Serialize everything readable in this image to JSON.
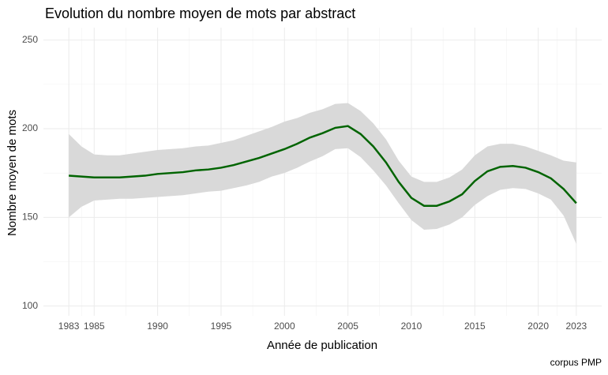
{
  "chart_data": {
    "type": "line",
    "title": "Evolution du nombre moyen de mots par abstract",
    "x_label": "Année de publication",
    "y_label": "Nombre moyen de mots",
    "caption": "corpus PMP",
    "x": [
      1983,
      1984,
      1985,
      1986,
      1987,
      1988,
      1989,
      1990,
      1991,
      1992,
      1993,
      1994,
      1995,
      1996,
      1997,
      1998,
      1999,
      2000,
      2001,
      2002,
      2003,
      2004,
      2005,
      2006,
      2007,
      2008,
      2009,
      2010,
      2011,
      2012,
      2013,
      2014,
      2015,
      2016,
      2017,
      2018,
      2019,
      2020,
      2021,
      2022,
      2023
    ],
    "values": [
      173.5,
      173,
      172.5,
      172.5,
      172.5,
      173,
      173.5,
      174.5,
      175,
      175.5,
      176.5,
      177,
      178,
      179.5,
      181.5,
      183.5,
      186,
      188.5,
      191.5,
      195,
      197.5,
      200.5,
      201.5,
      197,
      190,
      181,
      170,
      161,
      156.5,
      156.5,
      159,
      163,
      170.5,
      176,
      178.5,
      179,
      178,
      175.5,
      172,
      166,
      158
    ],
    "upper": [
      197,
      190,
      185.5,
      185,
      185,
      186,
      187,
      188,
      188.5,
      189,
      190,
      190.5,
      192,
      193.5,
      196,
      198.5,
      201,
      204,
      206,
      209,
      211,
      214,
      214.5,
      210,
      203,
      194,
      182,
      173,
      170,
      170,
      172.5,
      177,
      185,
      190,
      191.5,
      191.5,
      190,
      187.5,
      185,
      182,
      181
    ],
    "lower": [
      150,
      156,
      159.5,
      160,
      160.5,
      160.5,
      161,
      161.5,
      162,
      162.5,
      163.5,
      164.5,
      165,
      166.5,
      168,
      170,
      173,
      175,
      178,
      181.5,
      184.5,
      188.5,
      189,
      184,
      176.5,
      168,
      158,
      148.5,
      143,
      143.5,
      146,
      150,
      157,
      162,
      165.5,
      166.5,
      166,
      163.5,
      160,
      151,
      135
    ],
    "color": "#006400",
    "band_color": "#d9d9d9",
    "xlim": [
      1981,
      2025
    ],
    "ylim": [
      94.5,
      257
    ],
    "xticks": [
      1983,
      1985,
      1990,
      1995,
      2000,
      2005,
      2010,
      2015,
      2020,
      2023
    ],
    "yticks": [
      100,
      150,
      200,
      250
    ],
    "grid": true
  }
}
